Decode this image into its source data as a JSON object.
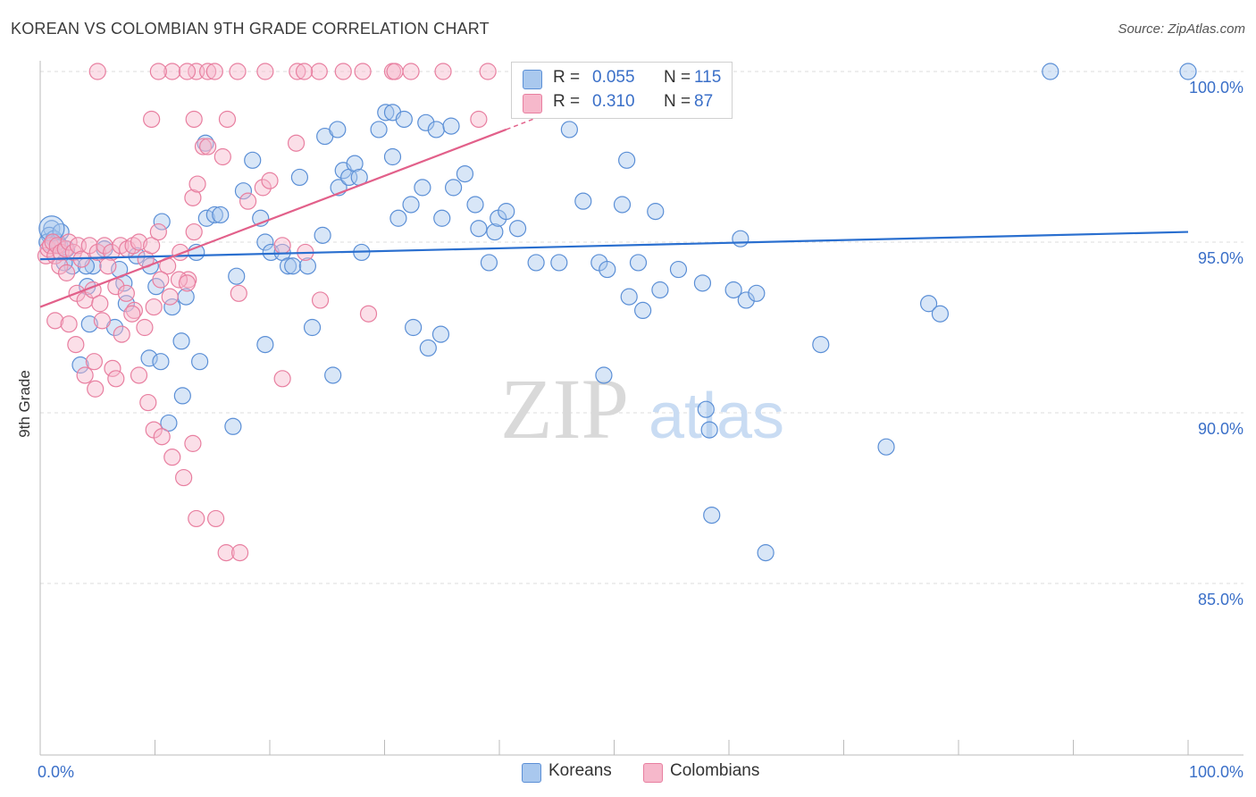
{
  "title": "KOREAN VS COLOMBIAN 9TH GRADE CORRELATION CHART",
  "source": "Source: ZipAtlas.com",
  "watermark": {
    "zip": "ZIP",
    "atlas": "atlas"
  },
  "legend_top": {
    "rows": [
      {
        "r_label": "R =",
        "r_value": "0.055",
        "n_label": "N =",
        "n_value": "115"
      },
      {
        "r_label": "R =",
        "r_value": "0.310",
        "n_label": "N =",
        "n_value": "87"
      }
    ]
  },
  "legend_bottom": {
    "items": [
      "Koreans",
      "Colombians"
    ]
  },
  "colors": {
    "korean_fill": "#a9c8ee",
    "korean_stroke": "#5b8fd6",
    "korean_line": "#2a6fcf",
    "colombian_fill": "#f6b8cb",
    "colombian_stroke": "#e87fa0",
    "colombian_line": "#e2608a",
    "tick_label": "#3a6fc8",
    "grid": "#dddddd"
  },
  "chart_data": {
    "type": "scatter",
    "title": "KOREAN VS COLOMBIAN 9TH GRADE CORRELATION CHART",
    "xlabel": "",
    "ylabel": "9th Grade",
    "xlim": [
      0,
      100
    ],
    "ylim": [
      80.5,
      100.7
    ],
    "x_tick_labels": [
      {
        "value": 0,
        "label": "0.0%"
      },
      {
        "value": 100,
        "label": "100.0%"
      }
    ],
    "y_tick_labels": [
      {
        "value": 100,
        "label": "100.0%"
      },
      {
        "value": 95,
        "label": "95.0%"
      },
      {
        "value": 90,
        "label": "90.0%"
      },
      {
        "value": 85,
        "label": "85.0%"
      }
    ],
    "grid": true,
    "legend_position": "top-center",
    "series": [
      {
        "name": "Koreans",
        "r": 0.055,
        "n": 115,
        "trend": {
          "x": [
            0,
            100
          ],
          "y": [
            94.5,
            95.3
          ]
        },
        "points": [
          [
            1.0,
            95.4
          ],
          [
            0.8,
            95.2
          ],
          [
            0.6,
            95.0
          ],
          [
            1.2,
            95.1
          ],
          [
            1.7,
            94.9
          ],
          [
            2.3,
            94.8
          ],
          [
            1.5,
            95.0
          ],
          [
            2.8,
            94.3
          ],
          [
            4.6,
            94.3
          ],
          [
            5.6,
            94.8
          ],
          [
            6.9,
            94.2
          ],
          [
            4.1,
            93.7
          ],
          [
            7.3,
            93.8
          ],
          [
            8.4,
            94.6
          ],
          [
            9.6,
            94.3
          ],
          [
            7.5,
            93.2
          ],
          [
            10.1,
            93.7
          ],
          [
            10.6,
            95.6
          ],
          [
            11.5,
            93.1
          ],
          [
            12.7,
            93.4
          ],
          [
            13.6,
            94.7
          ],
          [
            14.4,
            97.9
          ],
          [
            14.5,
            95.7
          ],
          [
            15.2,
            95.8
          ],
          [
            15.7,
            95.8
          ],
          [
            17.1,
            94.0
          ],
          [
            17.7,
            96.5
          ],
          [
            18.5,
            97.4
          ],
          [
            19.2,
            95.7
          ],
          [
            19.6,
            95.0
          ],
          [
            20.1,
            94.7
          ],
          [
            21.1,
            94.7
          ],
          [
            21.6,
            94.3
          ],
          [
            22.0,
            94.3
          ],
          [
            22.6,
            96.9
          ],
          [
            23.3,
            94.3
          ],
          [
            24.6,
            95.2
          ],
          [
            24.8,
            98.1
          ],
          [
            25.9,
            98.3
          ],
          [
            26.0,
            96.6
          ],
          [
            26.4,
            97.1
          ],
          [
            26.9,
            96.9
          ],
          [
            27.4,
            97.3
          ],
          [
            27.8,
            96.9
          ],
          [
            28.0,
            94.7
          ],
          [
            29.5,
            98.3
          ],
          [
            30.1,
            98.8
          ],
          [
            30.7,
            97.5
          ],
          [
            30.7,
            98.8
          ],
          [
            31.2,
            95.7
          ],
          [
            31.7,
            98.6
          ],
          [
            32.3,
            96.1
          ],
          [
            33.3,
            96.6
          ],
          [
            33.6,
            98.5
          ],
          [
            34.5,
            98.3
          ],
          [
            35.0,
            95.7
          ],
          [
            35.8,
            98.4
          ],
          [
            36.0,
            96.6
          ],
          [
            37.0,
            97.0
          ],
          [
            37.9,
            96.1
          ],
          [
            38.2,
            95.4
          ],
          [
            39.1,
            94.4
          ],
          [
            39.6,
            95.3
          ],
          [
            39.9,
            95.7
          ],
          [
            40.6,
            95.9
          ],
          [
            41.6,
            95.4
          ],
          [
            42.6,
            98.9
          ],
          [
            43.2,
            94.4
          ],
          [
            45.2,
            94.4
          ],
          [
            46.1,
            98.3
          ],
          [
            47.3,
            96.2
          ],
          [
            48.7,
            94.4
          ],
          [
            49.4,
            94.2
          ],
          [
            50.7,
            96.1
          ],
          [
            51.1,
            97.4
          ],
          [
            51.3,
            93.4
          ],
          [
            52.1,
            94.4
          ],
          [
            52.5,
            93.0
          ],
          [
            53.6,
            95.9
          ],
          [
            54.0,
            93.6
          ],
          [
            55.6,
            94.2
          ],
          [
            57.7,
            93.8
          ],
          [
            60.4,
            93.6
          ],
          [
            61.0,
            95.1
          ],
          [
            61.5,
            93.3
          ],
          [
            62.4,
            93.5
          ],
          [
            68.0,
            92.0
          ],
          [
            77.4,
            93.2
          ],
          [
            78.4,
            92.9
          ],
          [
            88.0,
            100.0
          ],
          [
            100.0,
            100.0
          ],
          [
            2.1,
            94.4
          ],
          [
            4.3,
            92.6
          ],
          [
            6.5,
            92.5
          ],
          [
            9.5,
            91.6
          ],
          [
            10.5,
            91.5
          ],
          [
            12.3,
            92.1
          ],
          [
            13.9,
            91.5
          ],
          [
            16.8,
            89.6
          ],
          [
            19.6,
            92.0
          ],
          [
            23.7,
            92.5
          ],
          [
            25.5,
            91.1
          ],
          [
            32.5,
            92.5
          ],
          [
            33.8,
            91.9
          ],
          [
            34.9,
            92.3
          ],
          [
            49.1,
            91.1
          ],
          [
            58.0,
            90.1
          ],
          [
            58.3,
            89.5
          ],
          [
            58.5,
            87.0
          ],
          [
            63.2,
            85.9
          ],
          [
            73.7,
            89.0
          ],
          [
            12.4,
            90.5
          ],
          [
            11.2,
            89.7
          ],
          [
            3.5,
            91.4
          ],
          [
            1.8,
            95.3
          ],
          [
            4.0,
            94.3
          ]
        ]
      },
      {
        "name": "Colombians",
        "r": 0.31,
        "n": 87,
        "trend": {
          "x": [
            0,
            40.6
          ],
          "y": [
            93.1,
            98.3
          ]
        },
        "trend_extension": {
          "x": [
            40.6,
            46.0
          ],
          "y": [
            98.3,
            99.0
          ]
        },
        "points": [
          [
            0.5,
            94.6
          ],
          [
            0.7,
            94.8
          ],
          [
            0.9,
            94.9
          ],
          [
            1.1,
            95.0
          ],
          [
            1.3,
            94.6
          ],
          [
            1.5,
            94.9
          ],
          [
            1.8,
            94.7
          ],
          [
            2.2,
            94.8
          ],
          [
            2.5,
            95.0
          ],
          [
            2.9,
            94.7
          ],
          [
            3.3,
            94.9
          ],
          [
            3.6,
            94.5
          ],
          [
            4.3,
            94.9
          ],
          [
            5.0,
            94.7
          ],
          [
            5.6,
            94.9
          ],
          [
            6.2,
            94.7
          ],
          [
            7.0,
            94.9
          ],
          [
            7.6,
            94.8
          ],
          [
            8.1,
            94.9
          ],
          [
            8.6,
            95.0
          ],
          [
            9.2,
            94.5
          ],
          [
            9.7,
            94.9
          ],
          [
            10.3,
            95.3
          ],
          [
            11.1,
            94.3
          ],
          [
            12.2,
            94.7
          ],
          [
            12.9,
            93.9
          ],
          [
            13.4,
            95.3
          ],
          [
            1.7,
            94.3
          ],
          [
            2.3,
            94.1
          ],
          [
            3.2,
            93.5
          ],
          [
            3.9,
            93.3
          ],
          [
            4.6,
            93.6
          ],
          [
            5.2,
            93.2
          ],
          [
            5.9,
            94.3
          ],
          [
            6.6,
            93.7
          ],
          [
            7.5,
            93.5
          ],
          [
            8.2,
            93.0
          ],
          [
            9.1,
            92.5
          ],
          [
            9.9,
            93.1
          ],
          [
            10.5,
            93.9
          ],
          [
            11.3,
            93.4
          ],
          [
            12.1,
            93.9
          ],
          [
            12.8,
            93.8
          ],
          [
            13.3,
            96.3
          ],
          [
            13.7,
            96.7
          ],
          [
            14.2,
            97.8
          ],
          [
            14.6,
            97.8
          ],
          [
            15.9,
            97.5
          ],
          [
            16.3,
            98.6
          ],
          [
            17.3,
            93.5
          ],
          [
            18.1,
            96.2
          ],
          [
            19.4,
            96.6
          ],
          [
            20.0,
            96.8
          ],
          [
            21.1,
            94.9
          ],
          [
            22.3,
            97.9
          ],
          [
            23.1,
            94.7
          ],
          [
            1.3,
            92.7
          ],
          [
            2.5,
            92.6
          ],
          [
            3.1,
            92.0
          ],
          [
            3.9,
            91.1
          ],
          [
            4.7,
            91.5
          ],
          [
            5.4,
            92.7
          ],
          [
            6.3,
            91.3
          ],
          [
            7.1,
            92.3
          ],
          [
            8.0,
            92.9
          ],
          [
            8.6,
            91.1
          ],
          [
            9.4,
            90.3
          ],
          [
            9.9,
            89.5
          ],
          [
            10.6,
            89.3
          ],
          [
            11.5,
            88.7
          ],
          [
            12.5,
            88.1
          ],
          [
            13.3,
            89.1
          ],
          [
            13.6,
            86.9
          ],
          [
            15.3,
            86.9
          ],
          [
            16.2,
            85.9
          ],
          [
            17.4,
            85.9
          ],
          [
            6.6,
            91.0
          ],
          [
            4.8,
            90.7
          ],
          [
            21.1,
            91.0
          ],
          [
            24.4,
            93.3
          ],
          [
            28.6,
            92.9
          ],
          [
            11.5,
            100.0
          ],
          [
            13.6,
            100.0
          ],
          [
            17.2,
            100.0
          ],
          [
            22.4,
            100.0
          ],
          [
            24.3,
            100.0
          ],
          [
            30.7,
            100.0
          ]
        ],
        "top_row_points": [
          [
            5.0,
            100.0
          ],
          [
            10.3,
            100.0
          ],
          [
            12.8,
            100.0
          ],
          [
            14.6,
            100.0
          ],
          [
            15.2,
            100.0
          ],
          [
            19.6,
            100.0
          ],
          [
            23.0,
            100.0
          ],
          [
            26.4,
            100.0
          ],
          [
            28.1,
            100.0
          ],
          [
            30.9,
            100.0
          ],
          [
            32.3,
            100.0
          ],
          [
            35.1,
            100.0
          ],
          [
            39.0,
            100.0
          ],
          [
            38.2,
            98.6
          ],
          [
            9.7,
            98.6
          ],
          [
            13.4,
            98.6
          ]
        ]
      }
    ]
  }
}
